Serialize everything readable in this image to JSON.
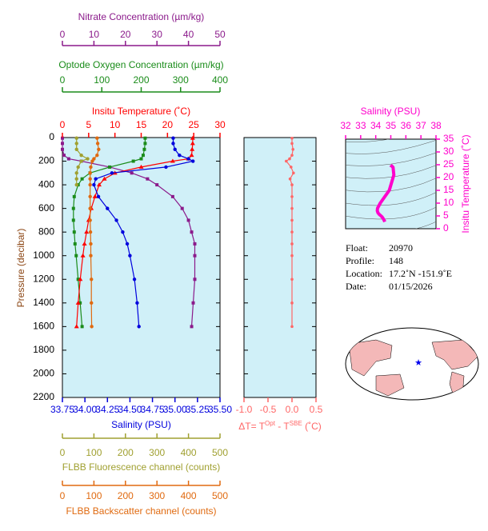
{
  "chart_data": [
    {
      "type": "profile",
      "pressure": [
        5,
        50,
        100,
        150,
        180,
        200,
        250,
        300,
        350,
        400,
        500,
        600,
        700,
        800,
        900,
        1000,
        1200,
        1400,
        1600
      ],
      "y_label": "Pressure (decibar)",
      "ylim": [
        0,
        2200
      ],
      "yticks": [
        0,
        200,
        400,
        600,
        800,
        1000,
        1200,
        1400,
        1600,
        1800,
        2000,
        2200
      ],
      "axes": [
        {
          "label": "Nitrate Concentration (µm/kg)",
          "color": "#8b1a8b",
          "marker": "square",
          "xlim": [
            0,
            50
          ],
          "xticks": [
            0,
            10,
            20,
            30,
            40,
            50
          ],
          "values": [
            0,
            0,
            0,
            0.5,
            2,
            6,
            15,
            22,
            27,
            30,
            35,
            38,
            40,
            41,
            42,
            42,
            42,
            41.5,
            41
          ]
        },
        {
          "label": "Optode Oxygen Concentration (µm/kg)",
          "color": "#1a8c1a",
          "marker": "square",
          "xlim": [
            0,
            400
          ],
          "xticks": [
            0,
            100,
            200,
            300,
            400
          ],
          "values": [
            210,
            210,
            208,
            205,
            200,
            180,
            120,
            70,
            50,
            40,
            30,
            28,
            28,
            30,
            32,
            35,
            40,
            45,
            50
          ]
        },
        {
          "label": "Insitu Temperature (˚C)",
          "color": "#ff0000",
          "marker": "triangle",
          "xlim": [
            0,
            30
          ],
          "xticks": [
            0,
            5,
            10,
            15,
            20,
            25,
            30
          ],
          "values": [
            24.8,
            24.8,
            24.7,
            24.6,
            24.0,
            21,
            15,
            10,
            8,
            7,
            6.2,
            5.5,
            5.0,
            4.6,
            4.2,
            3.9,
            3.4,
            3.0,
            2.7
          ]
        },
        {
          "label": "Salinity (PSU)",
          "color": "#0000dd",
          "marker": "circle",
          "xlim": [
            33.75,
            35.5
          ],
          "xticks": [
            33.75,
            {
              "value": 34,
              "label": "34.00"
            },
            34.25,
            {
              "value": 34.5,
              "label": "34.50"
            },
            34.75,
            {
              "value": 35,
              "label": "35.00"
            },
            35.25,
            {
              "value": 35.5,
              "label": "35.50"
            }
          ],
          "values": [
            34.98,
            34.98,
            35.0,
            35.05,
            35.15,
            35.2,
            34.9,
            34.3,
            34.12,
            34.1,
            34.15,
            34.25,
            34.35,
            34.42,
            34.47,
            34.5,
            34.55,
            34.58,
            34.6
          ]
        },
        {
          "label": "FLBB Fluorescence channel (counts)",
          "color": "#a0a030",
          "marker": "circle",
          "xlim": [
            0,
            500
          ],
          "xticks": [
            0,
            100,
            200,
            300,
            400,
            500
          ],
          "values": [
            45,
            45,
            45,
            60,
            80,
            60,
            50,
            45,
            45,
            45,
            null,
            null,
            null,
            null,
            null,
            null,
            null,
            null,
            null
          ]
        },
        {
          "label": "FLBB Backscatter channel (counts)",
          "color": "#e06a10",
          "marker": "circle",
          "xlim": [
            0,
            500
          ],
          "xticks": [
            0,
            100,
            200,
            300,
            400,
            500
          ],
          "values": [
            110,
            112,
            115,
            110,
            100,
            95,
            90,
            88,
            88,
            88,
            88,
            88,
            88,
            89,
            90,
            90,
            92,
            92,
            93
          ]
        }
      ]
    },
    {
      "type": "profile-difference",
      "xlabel_parts": [
        "ΔT= T",
        "Opt",
        " - T",
        "SBE",
        " (˚C)"
      ],
      "color": "#ff6666",
      "xlim": [
        -1.0,
        0.5
      ],
      "xticks": [
        {
          "value": -1,
          "label": "-1.0"
        },
        -0.5,
        {
          "value": 0,
          "label": "0.0"
        },
        0.5
      ],
      "values": [
        0.0,
        0.0,
        0.02,
        0.0,
        -0.05,
        -0.12,
        -0.02,
        0.03,
        -0.04,
        0.0,
        0.0,
        0.0,
        0.0,
        0.0,
        0.0,
        0.0,
        0.0,
        0.0,
        0.0
      ]
    },
    {
      "type": "ts",
      "color": "#ff00cc",
      "x_label": "Salinity (PSU)",
      "y_label": "Insitu Temperature (˚C)",
      "xlim": [
        32,
        38
      ],
      "xticks": [
        32,
        33,
        34,
        35,
        36,
        37,
        38
      ],
      "ylim": [
        0,
        35
      ],
      "yticks": [
        0,
        5,
        10,
        15,
        20,
        25,
        30,
        35
      ]
    }
  ],
  "info": [
    {
      "label": "Float:",
      "value": "20970"
    },
    {
      "label": "Profile:",
      "value": "148"
    },
    {
      "label": "Location:",
      "value": "17.2˚N  -151.9˚E"
    },
    {
      "label": "Date:",
      "value": "01/15/2026"
    }
  ]
}
